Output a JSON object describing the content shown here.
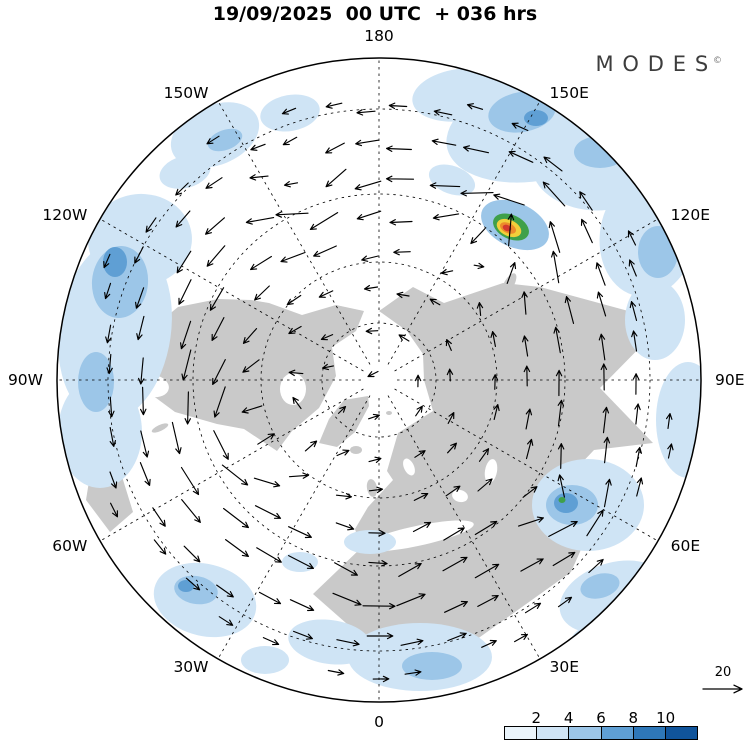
{
  "header": {
    "title": "19/09/2025  00 UTC  + 036 hrs"
  },
  "brand": {
    "name": "MODES",
    "mark": "©"
  },
  "map": {
    "lon_labels": [
      {
        "text": "180",
        "deg": 0
      },
      {
        "text": "150E",
        "deg": 30
      },
      {
        "text": "120E",
        "deg": 60
      },
      {
        "text": "90E",
        "deg": 90
      },
      {
        "text": "60E",
        "deg": 120
      },
      {
        "text": "30E",
        "deg": 150
      },
      {
        "text": "0",
        "deg": 180
      },
      {
        "text": "30W",
        "deg": 210
      },
      {
        "text": "60W",
        "deg": 240
      },
      {
        "text": "90W",
        "deg": 270
      },
      {
        "text": "120W",
        "deg": 300
      },
      {
        "text": "150W",
        "deg": 330
      }
    ],
    "colors": {
      "land": "#c9c9c9",
      "ocean": "#ffffff",
      "graticule": "#000000",
      "arrows": "#000000",
      "boundary": "#000000",
      "shade_light": "#cfe4f5",
      "shade_mid": "#9cc6e8",
      "shade_dark": "#5f9fd4",
      "spot_green": "#3fa04a",
      "spot_yellow": "#f2cf3a",
      "spot_orange": "#ec8b2b",
      "spot_red": "#d43a2e"
    }
  },
  "legend": {
    "tick_labels": [
      "2",
      "4",
      "6",
      "8",
      "10"
    ],
    "cell_colors": [
      "#eaf4fb",
      "#cfe4f5",
      "#9cc6e8",
      "#5f9fd4",
      "#2e77b8",
      "#10549b"
    ],
    "reference_vector_label": "20"
  }
}
